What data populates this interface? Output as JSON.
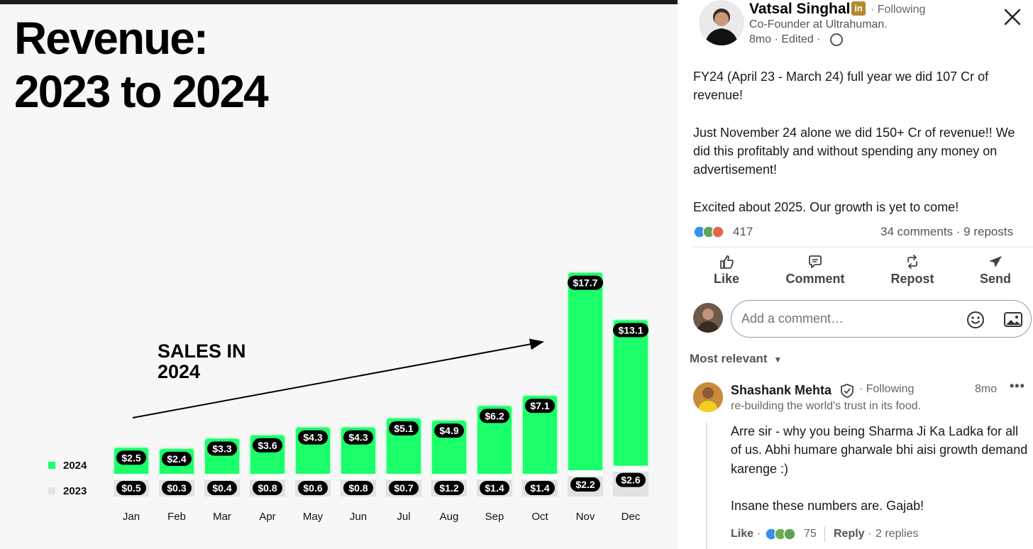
{
  "image": {
    "title_line_1": "Revenue:",
    "title_line_2": "2023 to 2024",
    "annotation_line_1": "SALES IN",
    "annotation_line_2": "2024",
    "colors": {
      "y2024": "#1aff6a",
      "y2023": "#e2e2e2",
      "label_bg": "#000000"
    }
  },
  "chart_data": {
    "type": "bar",
    "stacked": true,
    "categories": [
      "Jan",
      "Feb",
      "Mar",
      "Apr",
      "May",
      "Jun",
      "Jul",
      "Aug",
      "Sep",
      "Oct",
      "Nov",
      "Dec"
    ],
    "series": [
      {
        "name": "2024",
        "values": [
          2.5,
          2.4,
          3.3,
          3.6,
          4.3,
          4.3,
          5.1,
          4.9,
          6.2,
          7.1,
          17.7,
          13.1
        ],
        "labels": [
          "$2.5",
          "$2.4",
          "$3.3",
          "$3.6",
          "$4.3",
          "$4.3",
          "$5.1",
          "$4.9",
          "$6.2",
          "$7.1",
          "$17.7",
          "$13.1"
        ]
      },
      {
        "name": "2023",
        "values": [
          0.5,
          0.3,
          0.4,
          0.8,
          0.6,
          0.8,
          0.7,
          1.2,
          1.4,
          1.4,
          2.2,
          2.6
        ],
        "labels": [
          "$0.5",
          "$0.3",
          "$0.4",
          "$0.8",
          "$0.6",
          "$0.8",
          "$0.7",
          "$1.2",
          "$1.4",
          "$1.4",
          "$2.2",
          "$2.6"
        ]
      }
    ],
    "legend": {
      "position": "left",
      "entries": [
        "2024",
        "2023"
      ]
    },
    "title": "Revenue: 2023 to 2024",
    "xlabel": "",
    "ylabel": "",
    "grid": false
  },
  "post": {
    "author": {
      "name": "Vatsal Singhal",
      "badge_icon": "linkedin-icon",
      "following": "· Following",
      "headline": "Co-Founder at Ultrahuman.",
      "meta": "8mo · Edited ·",
      "visibility_icon": "globe-icon"
    },
    "body": [
      "FY24 (April 23 - March 24) full year we did 107 Cr of revenue!",
      "Just November 24 alone we did 150+ Cr of revenue!! We did this profitably and without spending any money on advertisement!",
      "Excited about 2025. Our growth is yet to come!"
    ],
    "reactions_count": "417",
    "comments_reposts": "34 comments · 9 reposts",
    "actions": {
      "like": "Like",
      "comment": "Comment",
      "repost": "Repost",
      "send": "Send"
    },
    "comment_placeholder": "Add a comment…",
    "sort_label": "Most relevant"
  },
  "comment": {
    "author": "Shashank Mehta",
    "following": "· Following",
    "time": "8mo",
    "more": "•••",
    "headline": "re-building the world's trust in its food.",
    "body": [
      "Arre sir - why you being Sharma Ji Ka Ladka for all of us. Abhi humare gharwale bhi aisi growth demand karenge :)",
      "Insane these numbers are. Gajab!"
    ],
    "like_label": "Like",
    "dot": "·",
    "reactions_count": "75",
    "reply_label": "Reply",
    "replies": "2 replies"
  }
}
